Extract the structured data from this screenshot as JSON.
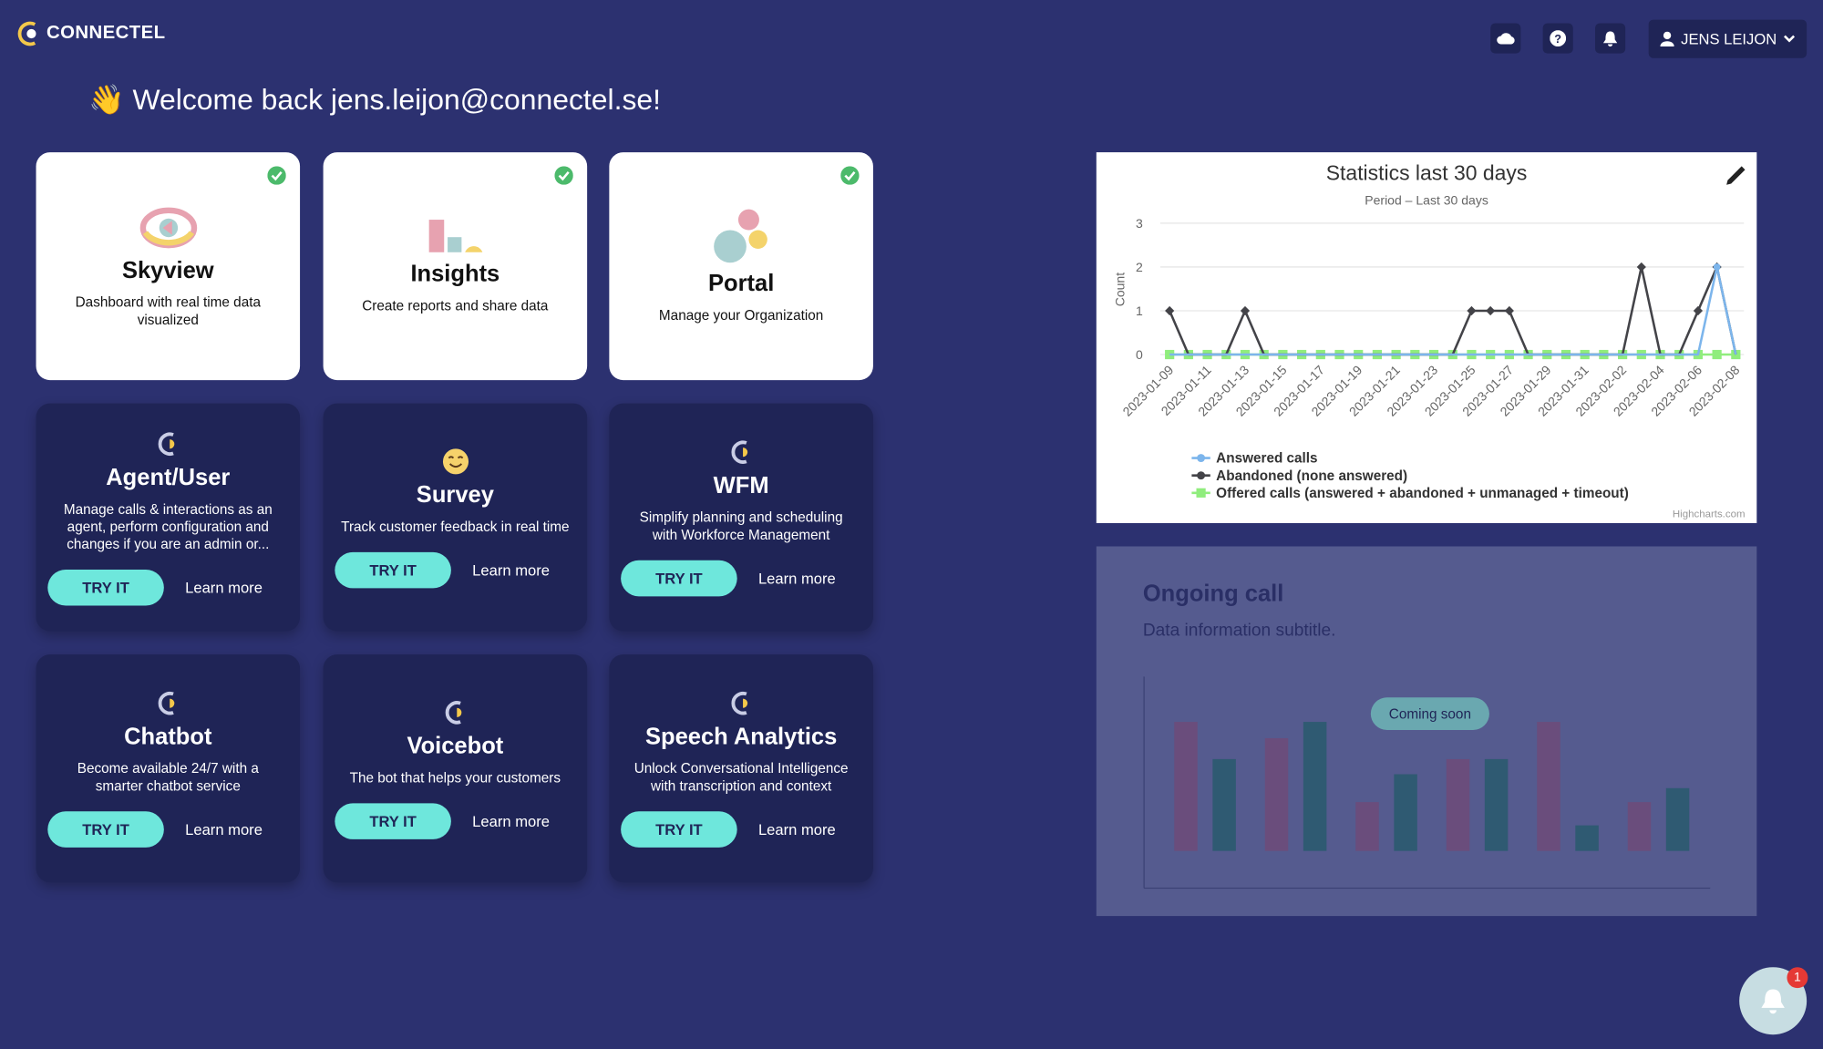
{
  "header": {
    "logo": "CONNECTEL",
    "user": "JENS LEIJON"
  },
  "welcome": "👋 Welcome back jens.leijon@connectel.se!",
  "apps": [
    {
      "title": "Skyview",
      "description": "Dashboard with real time data visualized"
    },
    {
      "title": "Insights",
      "description": "Create reports and share data"
    },
    {
      "title": "Portal",
      "description": "Manage your Organization"
    }
  ],
  "products": [
    {
      "title": "Agent/User",
      "description": "Manage calls & interactions as an agent, perform configuration and changes if you are an admin or...",
      "button": "TRY IT",
      "link": "Learn more"
    },
    {
      "title": "Survey",
      "description": "Track customer feedback in real time",
      "button": "TRY IT",
      "link": "Learn more"
    },
    {
      "title": "WFM",
      "description": "Simplify planning and scheduling with Workforce Management",
      "button": "TRY IT",
      "link": "Learn more"
    },
    {
      "title": "Chatbot",
      "description": "Become available 24/7 with a smarter chatbot service",
      "button": "TRY IT",
      "link": "Learn more"
    },
    {
      "title": "Voicebot",
      "description": "The bot that helps your customers",
      "button": "TRY IT",
      "link": "Learn more"
    },
    {
      "title": "Speech Analytics",
      "description": "Unlock Conversational Intelligence with transcription and context",
      "button": "TRY IT",
      "link": "Learn more"
    }
  ],
  "chart_data": {
    "type": "line",
    "title": "Statistics last 30 days",
    "subtitle": "Period – Last 30 days",
    "y_label": "Count",
    "credit": "Highcharts.com",
    "categories": [
      "2023-01-09",
      null,
      "2023-01-11",
      null,
      "2023-01-13",
      null,
      "2023-01-15",
      null,
      "2023-01-17",
      null,
      "2023-01-19",
      null,
      "2023-01-21",
      null,
      "2023-01-23",
      null,
      "2023-01-25",
      null,
      "2023-01-27",
      null,
      "2023-01-29",
      null,
      "2023-01-31",
      null,
      "2023-02-02",
      null,
      "2023-02-04",
      null,
      "2023-02-06",
      null,
      "2023-02-08"
    ],
    "series": [
      {
        "name": "Answered calls",
        "color": "#7cb5ec",
        "values": [
          0,
          0,
          0,
          0,
          0,
          0,
          0,
          0,
          0,
          0,
          0,
          0,
          0,
          0,
          0,
          0,
          0,
          0,
          0,
          0,
          0,
          0,
          0,
          0,
          0,
          0,
          0,
          0,
          0,
          2,
          0
        ]
      },
      {
        "name": "Abandoned (none answered)",
        "color": "#434348",
        "values": [
          1,
          0,
          0,
          0,
          1,
          0,
          0,
          0,
          0,
          0,
          0,
          0,
          0,
          0,
          0,
          0,
          1,
          1,
          1,
          0,
          0,
          0,
          0,
          0,
          0,
          2,
          0,
          0,
          1,
          2,
          0
        ]
      },
      {
        "name": "Offered calls (answered + abandoned + unmanaged + timeout)",
        "color": "#90ed7d",
        "values": [
          0,
          0,
          0,
          0,
          0,
          0,
          0,
          0,
          0,
          0,
          0,
          0,
          0,
          0,
          0,
          0,
          0,
          0,
          0,
          0,
          0,
          0,
          0,
          0,
          0,
          0,
          0,
          0,
          0,
          0,
          0
        ]
      }
    ],
    "ylim": [
      0,
      3
    ],
    "yticks": [
      0,
      1,
      2,
      3
    ],
    "grid": true
  },
  "ongoing": {
    "title": "Ongoing call",
    "subtitle": "Data information subtitle.",
    "badge": "Coming soon"
  },
  "notifications": {
    "count": "1"
  }
}
